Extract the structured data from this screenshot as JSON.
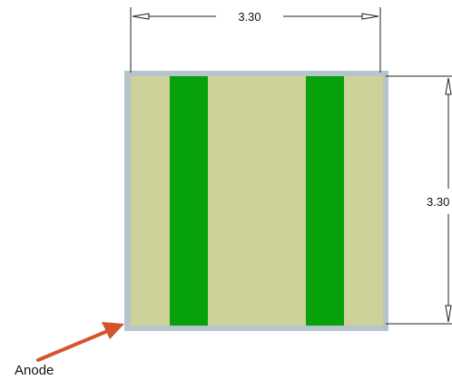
{
  "drawing": {
    "width_dimension": "3.30",
    "height_dimension": "3.30",
    "callout_label": "Anode"
  },
  "colors": {
    "substrate": "#cdd19a",
    "frame": "#b6c4cc",
    "stripe": "#07a10b",
    "dimension_line": "#222222",
    "arrow": "#d4552c"
  }
}
